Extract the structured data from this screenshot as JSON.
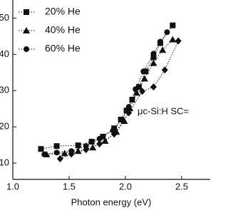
{
  "chart_data": {
    "type": "line",
    "xlabel": "Photon energy (eV)",
    "annotation": "μc-Si:H SC=",
    "xlim": [
      1.0,
      2.75
    ],
    "ylim": [
      5.5,
      55
    ],
    "xticks": [
      {
        "value": 1.0,
        "label": "1.0"
      },
      1.5,
      {
        "value": 2.0,
        "label": "2.0"
      },
      2.5
    ],
    "yticks": [
      10,
      20,
      30,
      40,
      50
    ],
    "legend": "upper left",
    "series": [
      {
        "name": "20% He",
        "color": "#111111",
        "marker": "square",
        "x": [
          1.25,
          1.39,
          1.58,
          1.7,
          1.8,
          1.9,
          1.96,
          2.01,
          2.06,
          2.12,
          2.18,
          2.25,
          2.31,
          2.42
        ],
        "values": [
          13.9,
          14.7,
          14.9,
          15.9,
          17.3,
          19.6,
          22.0,
          24.5,
          27.5,
          31.0,
          35.3,
          39.2,
          43.1,
          48.0
        ]
      },
      {
        "name": "40% He",
        "color": "#111111",
        "marker": "triangle",
        "x": [
          1.3,
          1.46,
          1.58,
          1.71,
          1.82,
          1.92,
          1.99,
          2.04,
          2.1,
          2.17,
          2.25,
          2.33,
          2.42
        ],
        "values": [
          12.4,
          12.7,
          13.3,
          14.3,
          16.1,
          18.6,
          21.6,
          25.1,
          29.4,
          33.3,
          37.6,
          41.2,
          44.1
        ]
      },
      {
        "name": "60% He",
        "color": "#111111",
        "marker": "circle",
        "x": [
          1.28,
          1.39,
          1.52,
          1.65,
          1.77,
          1.89,
          1.97,
          2.03,
          2.09,
          2.16,
          2.25,
          2.31,
          2.37
        ],
        "values": [
          12.4,
          12.9,
          13.3,
          14.7,
          16.7,
          19.0,
          22.0,
          25.5,
          30.4,
          35.3,
          40.2,
          43.5,
          46.1
        ]
      },
      {
        "color": "#111111",
        "marker": "diamond",
        "x": [
          1.42,
          1.52,
          1.65,
          1.77,
          1.9,
          2.03,
          2.15,
          2.25,
          2.35,
          2.47
        ],
        "values": [
          11.2,
          12.5,
          13.7,
          15.3,
          18.0,
          23.9,
          29.8,
          31.0,
          35.7,
          43.7
        ]
      }
    ]
  }
}
